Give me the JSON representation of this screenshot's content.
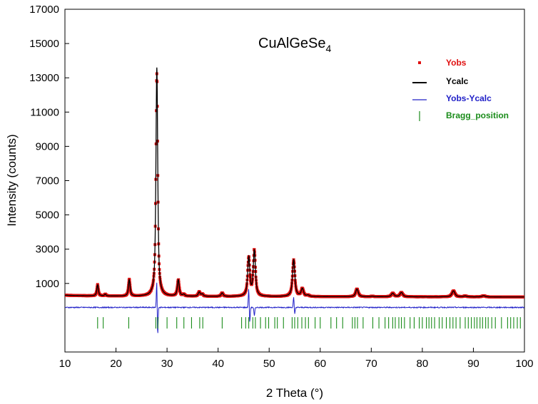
{
  "chart_data": {
    "type": "scatter",
    "title": "CuAlGeSe",
    "title_subscript": "4",
    "xlabel": "2 Theta (°)",
    "ylabel": "Intensity (counts)",
    "xlim": [
      10,
      100
    ],
    "ylim": [
      -3000,
      17000
    ],
    "x_ticks": [
      10,
      20,
      30,
      40,
      50,
      60,
      70,
      80,
      90,
      100
    ],
    "y_ticks": [
      1000,
      3000,
      5000,
      7000,
      9000,
      11000,
      13000,
      15000,
      17000
    ],
    "grid": false,
    "legend": {
      "placement": "top-right",
      "entries": [
        {
          "label": "Yobs",
          "marker": "square-dot",
          "color": "#e01010"
        },
        {
          "label": "Ycalc",
          "marker": "line",
          "color": "#000000"
        },
        {
          "label": "Yobs-Ycalc",
          "marker": "line",
          "color": "#2020c8"
        },
        {
          "label": "Bragg_position",
          "marker": "vbar",
          "color": "#1a8c1a"
        }
      ]
    },
    "background_level": 250,
    "difference_offset": -400,
    "bragg_row_level": -1300,
    "peaks": [
      {
        "x": 16.4,
        "y": 900
      },
      {
        "x": 17.9,
        "y": 350
      },
      {
        "x": 22.6,
        "y": 1200
      },
      {
        "x": 28.0,
        "y": 13600
      },
      {
        "x": 32.2,
        "y": 1200
      },
      {
        "x": 33.3,
        "y": 350
      },
      {
        "x": 36.3,
        "y": 500
      },
      {
        "x": 36.9,
        "y": 380
      },
      {
        "x": 40.8,
        "y": 450
      },
      {
        "x": 46.0,
        "y": 2500
      },
      {
        "x": 47.1,
        "y": 2900
      },
      {
        "x": 54.8,
        "y": 2400
      },
      {
        "x": 56.5,
        "y": 700
      },
      {
        "x": 57.6,
        "y": 320
      },
      {
        "x": 67.2,
        "y": 700
      },
      {
        "x": 70.2,
        "y": 280
      },
      {
        "x": 74.2,
        "y": 450
      },
      {
        "x": 75.9,
        "y": 500
      },
      {
        "x": 86.1,
        "y": 600
      },
      {
        "x": 88.4,
        "y": 300
      },
      {
        "x": 92.0,
        "y": 320
      }
    ],
    "bragg_positions": [
      16.4,
      17.5,
      22.5,
      27.8,
      28.2,
      30.0,
      31.9,
      33.3,
      34.8,
      36.4,
      37.0,
      40.8,
      44.6,
      45.4,
      46.0,
      46.8,
      47.3,
      48.3,
      49.3,
      49.9,
      51.1,
      51.6,
      52.8,
      54.5,
      55.0,
      55.6,
      56.4,
      57.1,
      57.7,
      59.0,
      60.0,
      62.1,
      63.2,
      64.4,
      66.3,
      66.8,
      67.3,
      68.4,
      70.3,
      71.5,
      72.7,
      73.4,
      74.2,
      74.7,
      75.4,
      75.9,
      76.5,
      77.6,
      78.4,
      79.4,
      80.0,
      80.8,
      81.3,
      81.8,
      82.4,
      83.3,
      83.9,
      84.7,
      85.4,
      86.0,
      86.6,
      87.4,
      88.4,
      89.0,
      89.6,
      90.2,
      90.7,
      91.3,
      91.8,
      92.4,
      92.9,
      93.6,
      94.3,
      95.5,
      96.7,
      97.3,
      97.9,
      98.6,
      99.2
    ],
    "difference_spikes": [
      {
        "x": 28.0,
        "y": 1800
      },
      {
        "x": 28.15,
        "y": -1900
      },
      {
        "x": 46.0,
        "y": 1100
      },
      {
        "x": 46.2,
        "y": -900
      },
      {
        "x": 47.1,
        "y": -500
      },
      {
        "x": 54.8,
        "y": 600
      },
      {
        "x": 55.0,
        "y": -400
      }
    ]
  }
}
